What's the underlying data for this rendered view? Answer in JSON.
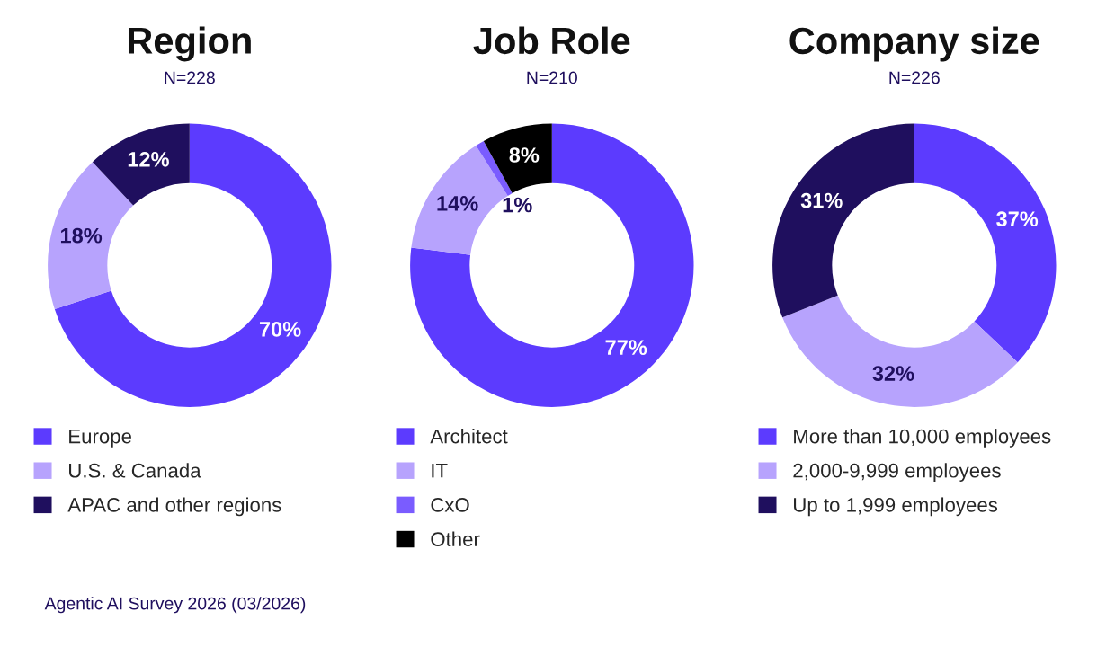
{
  "chart_data": [
    {
      "type": "donut",
      "title": "Region",
      "subtitle": "N=228",
      "categories": [
        "Europe",
        "U.S. & Canada",
        "APAC and other regions"
      ],
      "values": [
        70,
        18,
        12
      ],
      "value_labels": [
        "70%",
        "18%",
        "12%"
      ],
      "colors": [
        "#5c3bfe",
        "#b7a3fd",
        "#1f0f5e"
      ],
      "legend": "bottom"
    },
    {
      "type": "donut",
      "title": "Job Role",
      "subtitle": "N=210",
      "categories": [
        "Architect",
        "IT",
        "CxO",
        "Other"
      ],
      "values": [
        77,
        14,
        1,
        8
      ],
      "value_labels": [
        "77%",
        "14%",
        "1%",
        "8%"
      ],
      "colors": [
        "#5c3bfe",
        "#b7a3fd",
        "#7a5cff",
        "#000000"
      ],
      "legend": "bottom"
    },
    {
      "type": "donut",
      "title": "Company size",
      "subtitle": "N=226",
      "categories": [
        "More than 10,000 employees",
        "2,000-9,999 employees",
        "Up to 1,999 employees"
      ],
      "values": [
        37,
        32,
        31
      ],
      "value_labels": [
        "37%",
        "32%",
        "31%"
      ],
      "colors": [
        "#5c3bfe",
        "#b7a3fd",
        "#1f0f5e"
      ],
      "legend": "bottom",
      "annotations": [
        "Agentic AI Survey 2026 (03/2026)"
      ]
    }
  ]
}
